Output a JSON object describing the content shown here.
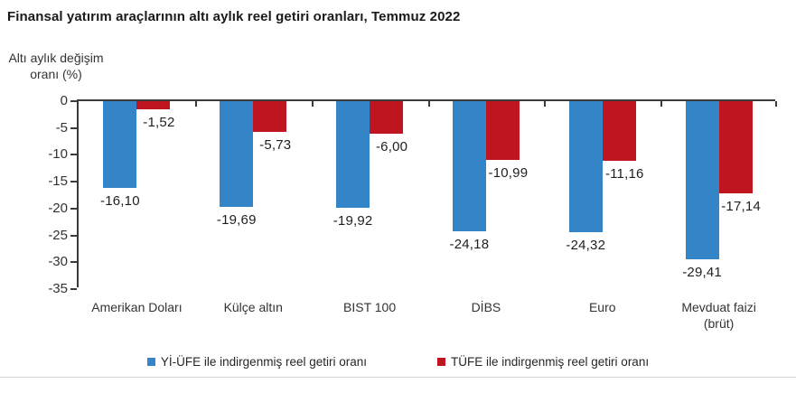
{
  "title": "Finansal yatırım araçlarının altı aylık reel getiri oranları, Temmuz 2022",
  "y_axis_label": "Altı aylık değişim\noranı (%)",
  "chart_data": {
    "type": "bar",
    "title": "Finansal yatırım araçlarının altı aylık reel getiri oranları, Temmuz 2022",
    "ylabel": "Altı aylık değişim oranı (%)",
    "xlabel": "",
    "categories": [
      "Amerikan Doları",
      "Külçe altın",
      "BIST 100",
      "DİBS",
      "Euro",
      "Mevduat faizi\n(brüt)"
    ],
    "series": [
      {
        "name": "Yİ-ÜFE ile indirgenmiş reel getiri oranı",
        "color": "#3385C7",
        "values": [
          -16.1,
          -19.69,
          -19.92,
          -24.18,
          -24.32,
          -29.41
        ],
        "labels": [
          "-16,10",
          "-19,69",
          "-19,92",
          "-24,18",
          "-24,32",
          "-29,41"
        ]
      },
      {
        "name": "TÜFE ile indirgenmiş reel getiri oranı",
        "color": "#BE1520",
        "values": [
          -1.52,
          -5.73,
          -6.0,
          -10.99,
          -11.16,
          -17.14
        ],
        "labels": [
          "-1,52",
          "-5,73",
          "-6,00",
          "-10,99",
          "-11,16",
          "-17,14"
        ]
      }
    ],
    "ylim": [
      0,
      -35
    ],
    "yticks": [
      0,
      -5,
      -10,
      -15,
      -20,
      -25,
      -30,
      -35
    ],
    "ytick_labels": [
      "0",
      "-5",
      "-10",
      "-15",
      "-20",
      "-25",
      "-30",
      "-35"
    ],
    "grid": false,
    "legend_position": "bottom"
  }
}
